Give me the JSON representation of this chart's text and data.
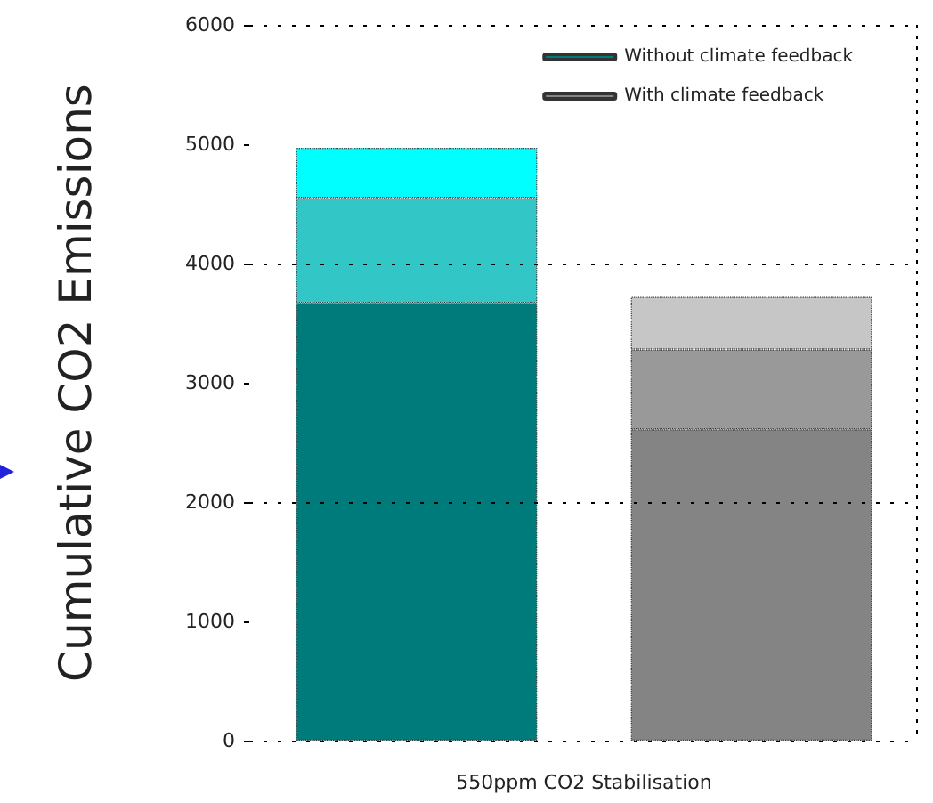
{
  "chart_data": {
    "type": "bar",
    "stacked": true,
    "ylabel": "Cumulative CO2 Emissions",
    "xlabel": "550ppm CO2 Stabilisation",
    "categories": [
      null,
      null
    ],
    "series": [
      {
        "name": "Without climate feedback",
        "color": "#007b7b",
        "values": [
          3670,
          null
        ]
      },
      {
        "color": "#33c6c6",
        "values": [
          880,
          null
        ]
      },
      {
        "color": "#00ffff",
        "values": [
          420,
          null
        ]
      },
      {
        "name": "With climate feedback",
        "color": "#848484",
        "values": [
          null,
          2610
        ]
      },
      {
        "color": "#999999",
        "values": [
          null,
          670
        ]
      },
      {
        "color": "#c6c6c6",
        "values": [
          null,
          440
        ]
      }
    ],
    "ylim": [
      0,
      6000
    ],
    "yticks": [
      0,
      1000,
      2000,
      3000,
      4000,
      5000,
      6000
    ],
    "grid": "y",
    "legend": "top right"
  }
}
